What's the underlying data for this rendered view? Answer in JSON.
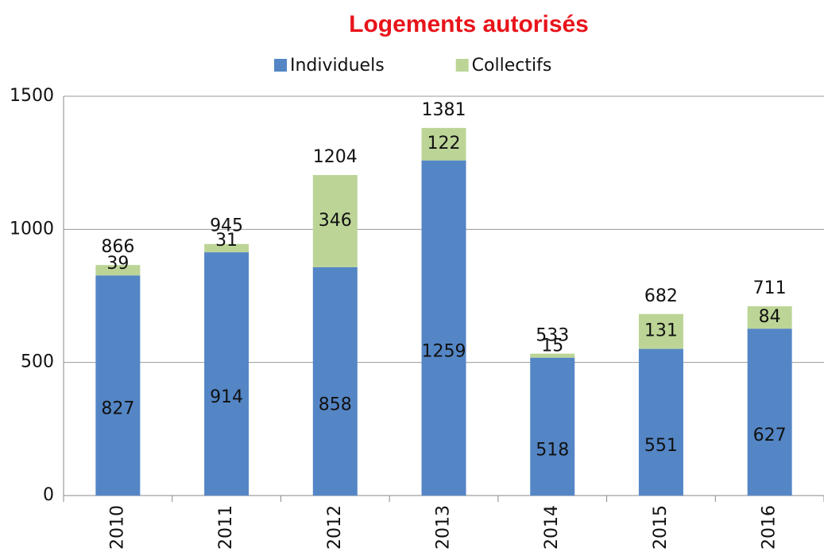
{
  "chart_data": {
    "type": "stacked_bar",
    "title": "Logements autorisés",
    "categories": [
      "2010",
      "2011",
      "2012",
      "2013",
      "2014",
      "2015",
      "2016"
    ],
    "series": [
      {
        "name": "Individuels",
        "color": "#5486c6",
        "values": [
          827,
          914,
          858,
          1259,
          518,
          551,
          627
        ]
      },
      {
        "name": "Collectifs",
        "color": "#bcd597",
        "values": [
          39,
          31,
          346,
          122,
          15,
          131,
          84
        ]
      }
    ],
    "totals": [
      866,
      945,
      1204,
      1381,
      533,
      682,
      711
    ],
    "ylim": [
      0,
      1500
    ],
    "yticks": [
      0,
      500,
      1000,
      1500
    ],
    "grid": true,
    "legend": "top"
  }
}
